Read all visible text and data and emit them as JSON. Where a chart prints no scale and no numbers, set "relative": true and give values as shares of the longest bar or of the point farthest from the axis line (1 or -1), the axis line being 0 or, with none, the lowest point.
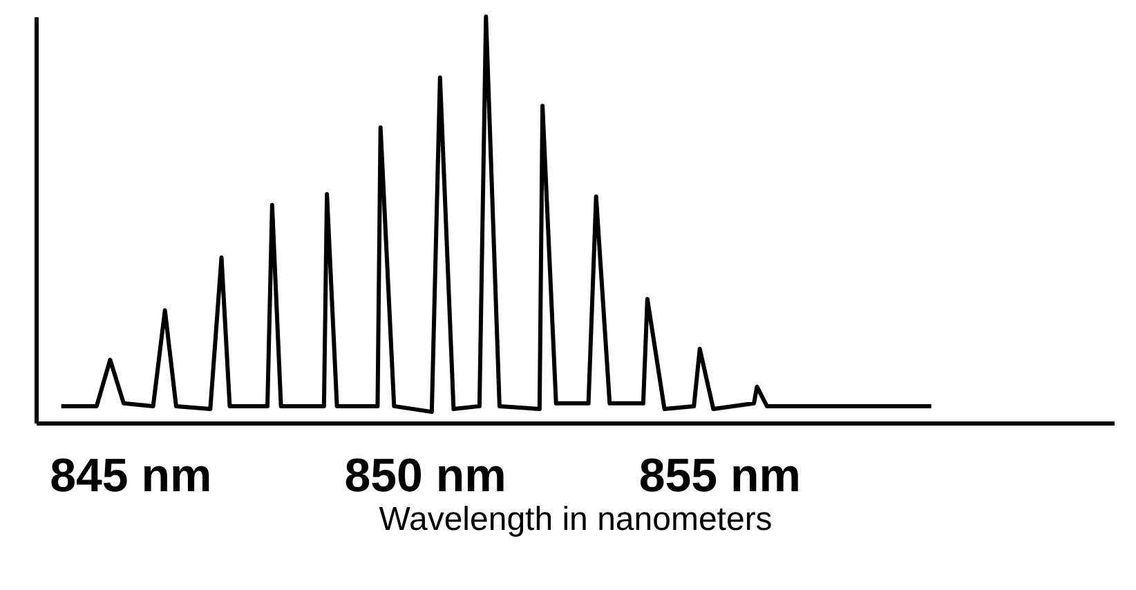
{
  "chart_data": {
    "type": "line",
    "relative": true,
    "xlabel": "Wavelength in nanometers",
    "xlim": [
      843.4,
      861.7
    ],
    "xticks": [
      {
        "value": 845,
        "label": "845 nm"
      },
      {
        "value": 850,
        "label": "850 nm"
      },
      {
        "value": 855,
        "label": "855 nm"
      }
    ],
    "grid": false,
    "legend": false,
    "marker": "none",
    "line_style": "solid",
    "series": [
      {
        "color": "#000000",
        "x": [
          843.83,
          844.43,
          844.66,
          844.89,
          845.39,
          845.59,
          845.78,
          846.36,
          846.55,
          846.69,
          847.33,
          847.41,
          847.56,
          848.29,
          848.34,
          848.51,
          849.2,
          849.25,
          849.48,
          850.12,
          850.26,
          850.49,
          850.93,
          851.04,
          851.27,
          851.95,
          852.0,
          852.23,
          852.78,
          852.91,
          853.14,
          853.71,
          853.78,
          854.07,
          854.57,
          854.67,
          854.9,
          855.59,
          855.64,
          855.81,
          858.6
        ],
        "values": [
          0.041,
          0.041,
          0.155,
          0.048,
          0.041,
          0.277,
          0.041,
          0.034,
          0.407,
          0.041,
          0.041,
          0.536,
          0.041,
          0.041,
          0.563,
          0.041,
          0.041,
          0.727,
          0.041,
          0.027,
          0.85,
          0.034,
          0.041,
          1.0,
          0.041,
          0.034,
          0.78,
          0.048,
          0.048,
          0.557,
          0.048,
          0.048,
          0.305,
          0.034,
          0.041,
          0.182,
          0.034,
          0.048,
          0.089,
          0.041,
          0.041
        ]
      }
    ]
  }
}
